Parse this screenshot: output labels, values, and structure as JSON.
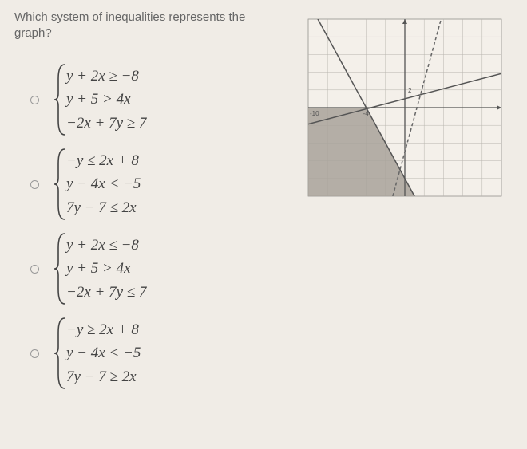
{
  "question": {
    "line1": "Which system of inequalities represents the",
    "line2": "graph?"
  },
  "options": [
    {
      "eq1": "y + 2x ≥ −8",
      "eq2": "y + 5 > 4x",
      "eq3": "−2x + 7y ≥ 7"
    },
    {
      "eq1": "−y ≤ 2x + 8",
      "eq2": "y − 4x < −5",
      "eq3": "7y − 7 ≤ 2x"
    },
    {
      "eq1": "y + 2x ≤ −8",
      "eq2": "y + 5 > 4x",
      "eq3": "−2x + 7y ≤ 7"
    },
    {
      "eq1": "−y ≥ 2x + 8",
      "eq2": "y − 4x < −5",
      "eq3": "7y − 7 ≥ 2x"
    }
  ],
  "graph": {
    "xlim": [
      -10,
      10
    ],
    "ylim": [
      -10,
      10
    ],
    "tick_step": 2,
    "background_color": "#f4f0ea",
    "grid_color": "#b8b4ae",
    "axis_color": "#555555",
    "shade_color": "#a8a29a",
    "line_color": "#555555",
    "dashed_line_color": "#666666",
    "polygon_vertices": [
      [
        -10,
        -10
      ],
      [
        -10,
        0
      ],
      [
        -4,
        0
      ],
      [
        1,
        -10
      ]
    ],
    "lines": [
      {
        "type": "solid",
        "points": [
          [
            -10,
            12
          ],
          [
            1,
            -10
          ]
        ],
        "desc": "y=-2x-8"
      },
      {
        "type": "solid",
        "points": [
          [
            -10,
            -1.857
          ],
          [
            10,
            3.857
          ]
        ],
        "desc": "y=(2x+7)/7"
      },
      {
        "type": "dashed",
        "points": [
          [
            -1.25,
            -10
          ],
          [
            3.75,
            10
          ]
        ],
        "desc": "y=4x-5"
      }
    ],
    "axis_labels": {
      "x_neg": "-10",
      "x_mid_neg": "-4",
      "y_pos2": "2"
    }
  },
  "styling": {
    "page_bg": "#f0ece6",
    "text_color": "#555555",
    "eq_color": "#444444",
    "eq_fontsize": 19,
    "question_fontsize": 15
  }
}
